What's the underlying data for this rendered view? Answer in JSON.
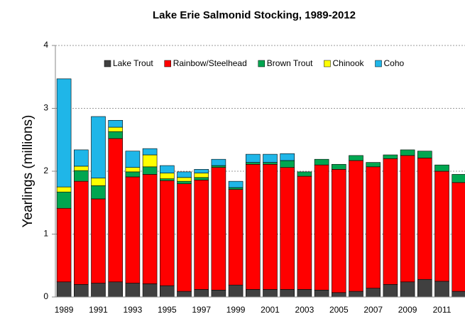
{
  "chart_data": {
    "type": "stacked-bar",
    "title": "Lake Erie Salmonid Stocking, 1989-2012",
    "y_label": "Yearlings (millions)",
    "categories": [
      "1989",
      null,
      "1991",
      null,
      "1993",
      null,
      "1995",
      null,
      "1997",
      null,
      "1999",
      null,
      "2001",
      null,
      "2003",
      null,
      "2005",
      null,
      "2007",
      null,
      "2009",
      null,
      "2011",
      null
    ],
    "series": [
      {
        "name": "Lake Trout",
        "color": "#404040",
        "values": [
          0.24,
          0.2,
          0.22,
          0.24,
          0.22,
          0.21,
          0.18,
          0.09,
          0.12,
          0.11,
          0.19,
          0.12,
          0.12,
          0.12,
          0.12,
          0.11,
          0.07,
          0.09,
          0.14,
          0.2,
          0.24,
          0.28,
          0.25,
          0.09
        ]
      },
      {
        "name": "Rainbow/Steelhead",
        "color": "#ff0000",
        "values": [
          1.17,
          1.64,
          1.34,
          2.28,
          1.69,
          1.74,
          1.67,
          1.71,
          1.74,
          1.95,
          1.52,
          1.99,
          1.99,
          1.94,
          1.8,
          1.99,
          1.96,
          2.08,
          1.93,
          2.0,
          2.01,
          1.93,
          1.75,
          1.73
        ]
      },
      {
        "name": "Brown Trout",
        "color": "#00a650",
        "values": [
          0.26,
          0.17,
          0.21,
          0.11,
          0.08,
          0.12,
          0.03,
          0.04,
          0.04,
          0.03,
          0.03,
          0.03,
          0.03,
          0.11,
          0.07,
          0.09,
          0.08,
          0.08,
          0.07,
          0.06,
          0.09,
          0.11,
          0.1,
          0.13
        ]
      },
      {
        "name": "Chinook",
        "color": "#ffff00",
        "values": [
          0.08,
          0.07,
          0.12,
          0.07,
          0.07,
          0.19,
          0.09,
          0.06,
          0.07,
          0,
          0,
          0,
          0,
          0,
          0,
          0,
          0,
          0,
          0,
          0,
          0,
          0,
          0,
          0
        ]
      },
      {
        "name": "Coho",
        "color": "#1fb6e8",
        "values": [
          1.72,
          0.26,
          0.98,
          0.11,
          0.26,
          0.1,
          0.12,
          0.09,
          0.06,
          0.1,
          0.1,
          0.13,
          0.13,
          0.11,
          0,
          0,
          0,
          0,
          0,
          0,
          0,
          0,
          0,
          0
        ]
      }
    ],
    "ylim": [
      0,
      4
    ],
    "yticks": [
      0,
      1,
      2,
      3,
      4
    ],
    "grid": true,
    "legend": "top"
  }
}
